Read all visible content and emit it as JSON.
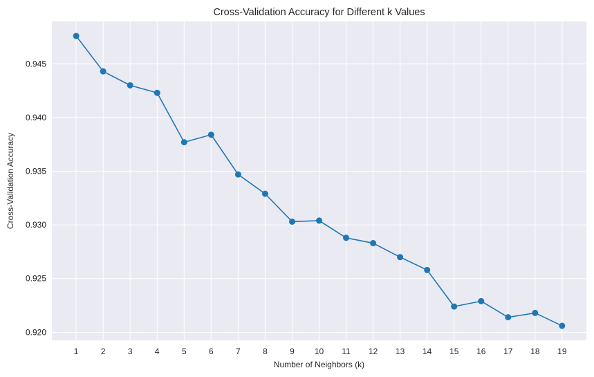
{
  "chart_data": {
    "type": "line",
    "title": "Cross-Validation Accuracy for Different k Values",
    "xlabel": "Number of Neighbors (k)",
    "ylabel": "Cross-Validation Accuracy",
    "x": [
      1,
      2,
      3,
      4,
      5,
      6,
      7,
      8,
      9,
      10,
      11,
      12,
      13,
      14,
      15,
      16,
      17,
      18,
      19
    ],
    "series": [
      {
        "values": [
          0.9476,
          0.9443,
          0.943,
          0.9423,
          0.9377,
          0.9384,
          0.9347,
          0.9329,
          0.9303,
          0.9304,
          0.9288,
          0.9283,
          0.927,
          0.9258,
          0.9224,
          0.9229,
          0.9214,
          0.9218,
          0.9206
        ],
        "color": "#1f77b4"
      }
    ],
    "xticks": [
      "1",
      "2",
      "3",
      "4",
      "5",
      "6",
      "7",
      "8",
      "9",
      "10",
      "11",
      "12",
      "13",
      "14",
      "15",
      "16",
      "17",
      "18",
      "19"
    ],
    "yticks": [
      "0.920",
      "0.925",
      "0.930",
      "0.935",
      "0.940",
      "0.945"
    ],
    "ytick_values": [
      0.92,
      0.925,
      0.93,
      0.935,
      0.94,
      0.945
    ],
    "xlim": [
      0.1,
      19.9
    ],
    "ylim": [
      0.91925,
      0.94895
    ],
    "grid": true,
    "marker": "circle",
    "background": "#eaeaf2",
    "grid_color": "#ffffff"
  }
}
